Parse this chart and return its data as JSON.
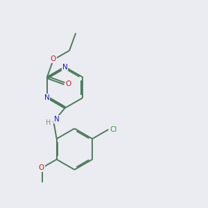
{
  "bg_color": "#ebebf2",
  "bond_color": "#4a7c59",
  "n_color": "#1a1acc",
  "o_color": "#cc1a1a",
  "cl_color": "#2aaa2a",
  "line_width": 1.4,
  "dbo": 0.06,
  "figsize": [
    3.0,
    3.0
  ],
  "dpi": 100,
  "xlim": [
    0,
    10
  ],
  "ylim": [
    0,
    10
  ],
  "font_size": 7.5
}
